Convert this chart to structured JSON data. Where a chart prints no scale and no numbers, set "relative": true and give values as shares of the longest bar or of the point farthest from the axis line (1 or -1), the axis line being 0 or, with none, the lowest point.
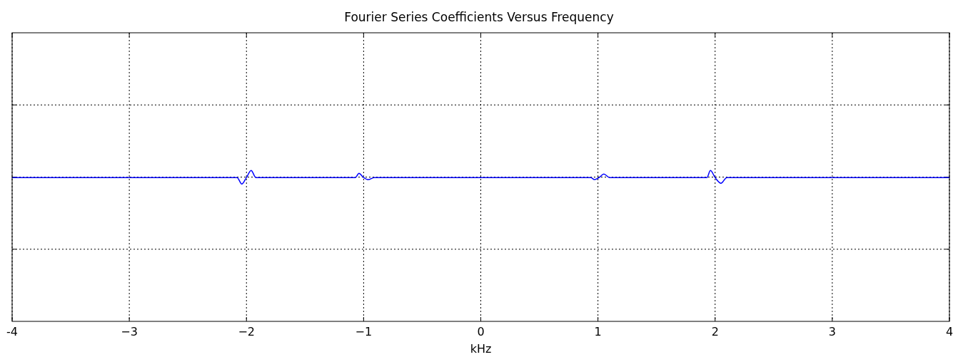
{
  "chart_data": {
    "type": "line",
    "title": "Fourier Series Coefficients Versus Frequency",
    "xlabel": "kHz",
    "relative": true,
    "grid": true,
    "xlim": [
      -4,
      4
    ],
    "xticks": [
      {
        "value": -4,
        "label": "-4"
      },
      {
        "value": -3,
        "label": "−3"
      },
      {
        "value": -2,
        "label": "−2"
      },
      {
        "value": -1,
        "label": "−1"
      },
      0,
      1,
      2,
      3,
      4
    ],
    "series": [
      {
        "color": "#0000ff",
        "x": [
          -4,
          -2.08,
          -2.04,
          -2.0,
          -1.96,
          -1.92,
          -1.07,
          -1.04,
          -1.0,
          -0.96,
          -0.91,
          0.94,
          0.97,
          1.01,
          1.05,
          1.1,
          1.93,
          1.96,
          2.0,
          2.05,
          2.1,
          4
        ],
        "values": [
          0.953,
          0.953,
          0.91,
          0.953,
          1.0,
          0.953,
          0.953,
          0.981,
          0.953,
          0.939,
          0.953,
          0.953,
          0.939,
          0.953,
          0.976,
          0.953,
          0.953,
          1.0,
          0.953,
          0.915,
          0.953,
          0.953
        ]
      }
    ]
  }
}
